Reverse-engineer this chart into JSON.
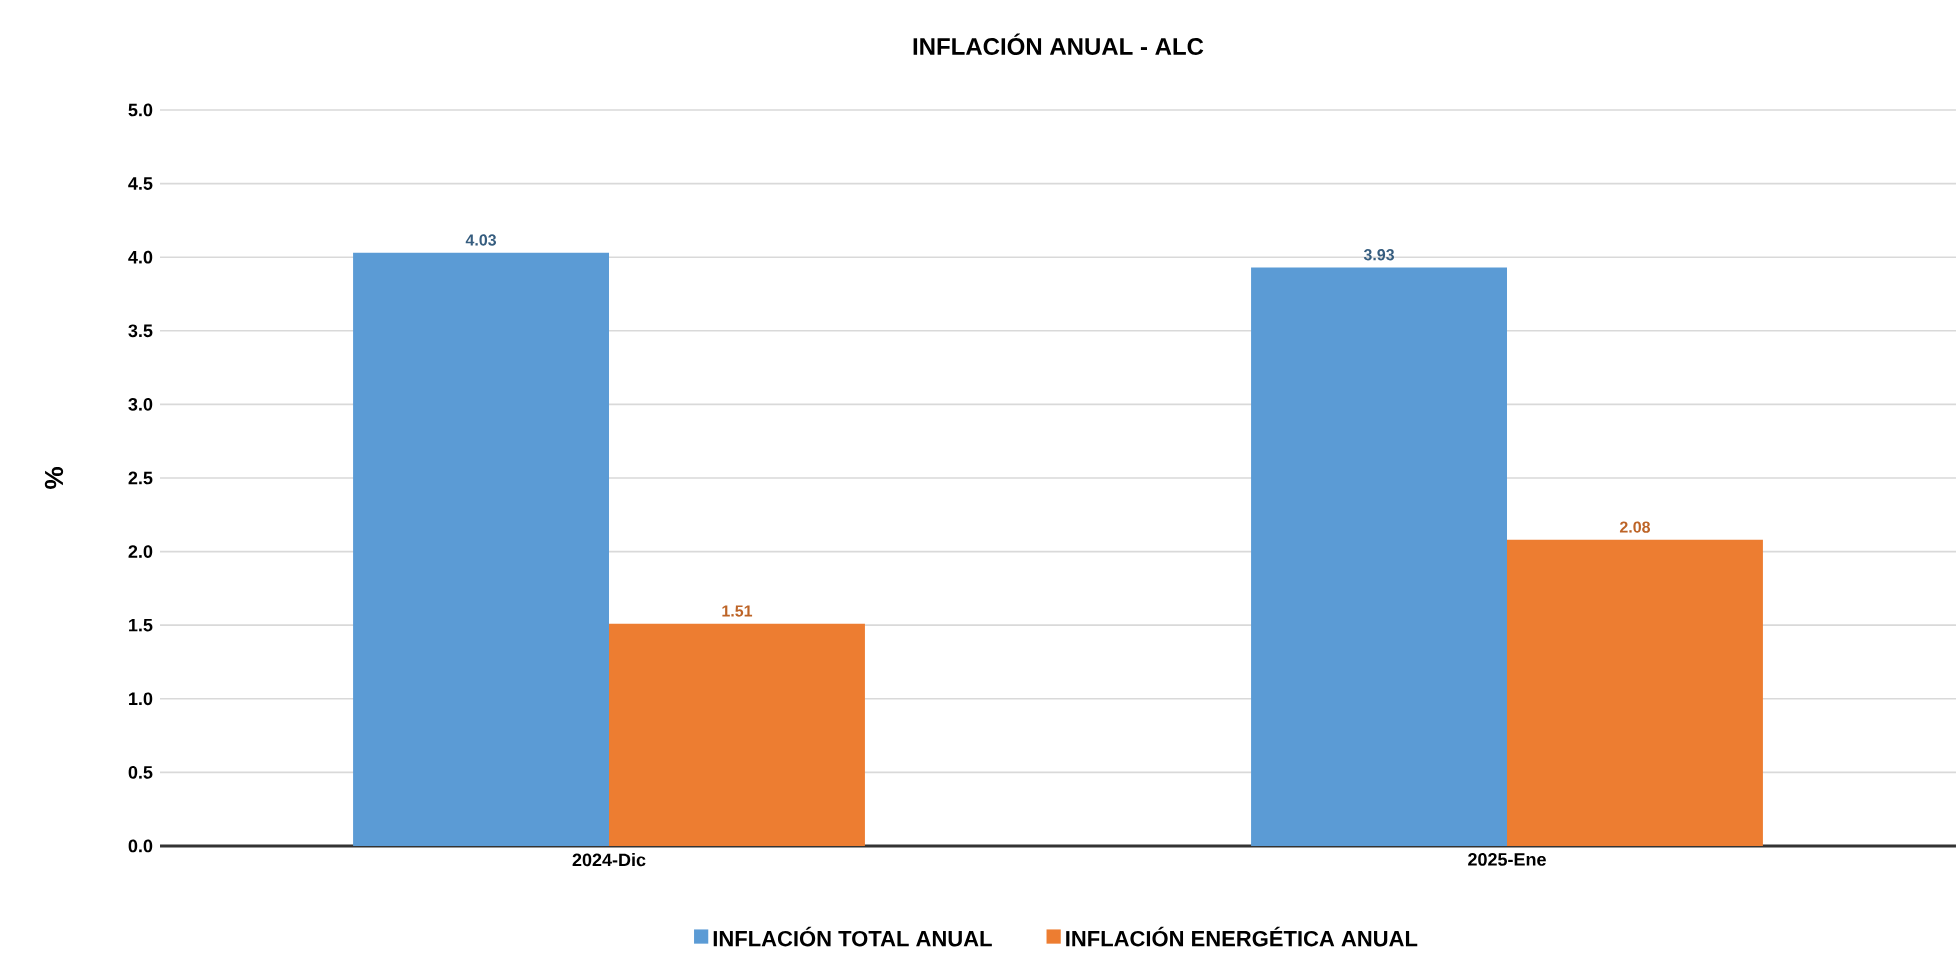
{
  "chart_data": {
    "type": "bar",
    "title": "INFLACIÓN ANUAL - ALC",
    "ylabel": "%",
    "categories": [
      "2024-Dic",
      "2025-Ene"
    ],
    "series": [
      {
        "name": "INFLACIÓN TOTAL ANUAL",
        "color": "#5b9bd5",
        "values": [
          4.03,
          3.93
        ]
      },
      {
        "name": "INFLACIÓN ENERGÉTICA ANUAL",
        "color": "#ed7d31",
        "values": [
          1.51,
          2.08
        ]
      }
    ],
    "ylim": [
      0,
      5
    ],
    "yticks": [
      "0.0",
      "0.5",
      "1.0",
      "1.5",
      "2.0",
      "2.5",
      "3.0",
      "3.5",
      "4.0",
      "4.5",
      "5.0"
    ],
    "grid": "y",
    "legend": "bottom",
    "data_labels": true
  }
}
